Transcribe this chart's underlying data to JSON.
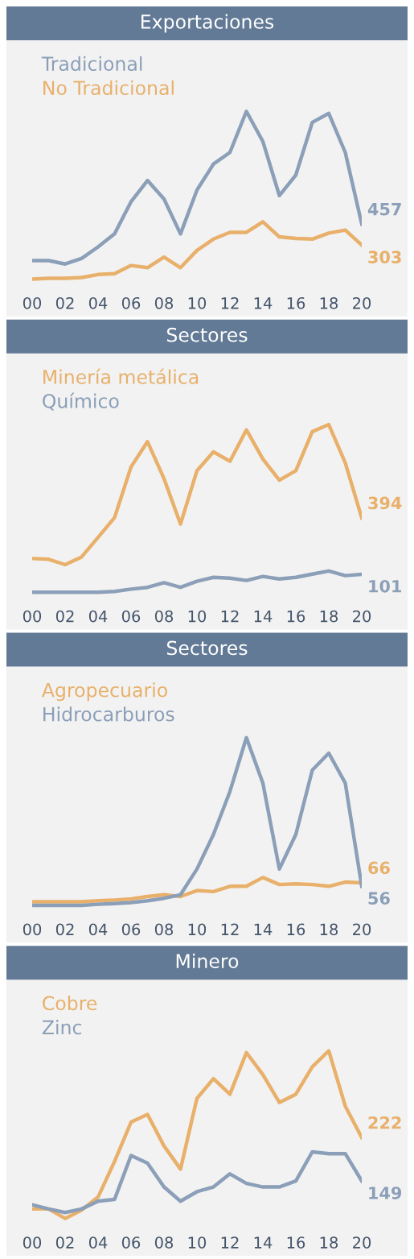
{
  "chart_data": [
    {
      "type": "line",
      "title": "Exportaciones",
      "legend": "top left",
      "tick_labels": "x",
      "grid": false,
      "marker": "none",
      "line_style": "solid",
      "x": [
        2000,
        2001,
        2002,
        2003,
        2004,
        2005,
        2006,
        2007,
        2008,
        2009,
        2010,
        2011,
        2012,
        2013,
        2014,
        2015,
        2016,
        2017,
        2018,
        2019,
        2020
      ],
      "xlim": [
        2000,
        2020
      ],
      "xticks": [
        {
          "value": 2000,
          "label": "00"
        },
        {
          "value": 2002,
          "label": "02"
        },
        {
          "value": 2004,
          "label": "04"
        },
        {
          "value": 2006,
          "label": "06"
        },
        {
          "value": 2008,
          "label": "08"
        },
        {
          "value": 2010,
          "label": "10"
        },
        {
          "value": 2012,
          "label": "12"
        },
        {
          "value": 2014,
          "label": "14"
        },
        {
          "value": 2016,
          "label": "16"
        },
        {
          "value": 2018,
          "label": "18"
        },
        {
          "value": 2020,
          "label": "20"
        }
      ],
      "series": [
        {
          "name": "Tradicional",
          "color": "#8b9fb8",
          "values": [
            190,
            190,
            165,
            205,
            290,
            385,
            620,
            775,
            640,
            385,
            705,
            895,
            980,
            1280,
            1060,
            665,
            815,
            1200,
            1265,
            980,
            457
          ],
          "value_labels": [
            null,
            null,
            null,
            null,
            null,
            null,
            null,
            null,
            null,
            null,
            null,
            null,
            null,
            null,
            null,
            null,
            null,
            null,
            null,
            null,
            "457"
          ]
        },
        {
          "name": "No Tradicional",
          "color": "#e8b06a",
          "values": [
            55,
            60,
            60,
            66,
            88,
            94,
            154,
            138,
            215,
            138,
            264,
            347,
            396,
            396,
            473,
            363,
            352,
            347,
            391,
            413,
            303
          ],
          "value_labels": [
            null,
            null,
            null,
            null,
            null,
            null,
            null,
            null,
            null,
            null,
            null,
            null,
            null,
            null,
            null,
            null,
            null,
            null,
            null,
            null,
            "303"
          ]
        }
      ]
    },
    {
      "type": "line",
      "title": "Sectores",
      "legend": "top left",
      "tick_labels": "x",
      "grid": false,
      "marker": "none",
      "line_style": "solid",
      "x": [
        2000,
        2001,
        2002,
        2003,
        2004,
        2005,
        2006,
        2007,
        2008,
        2009,
        2010,
        2011,
        2012,
        2013,
        2014,
        2015,
        2016,
        2017,
        2018,
        2019,
        2020
      ],
      "xlim": [
        2000,
        2020
      ],
      "xticks": [
        {
          "value": 2000,
          "label": "00"
        },
        {
          "value": 2002,
          "label": "02"
        },
        {
          "value": 2004,
          "label": "04"
        },
        {
          "value": 2006,
          "label": "06"
        },
        {
          "value": 2008,
          "label": "08"
        },
        {
          "value": 2010,
          "label": "10"
        },
        {
          "value": 2012,
          "label": "12"
        },
        {
          "value": 2014,
          "label": "14"
        },
        {
          "value": 2016,
          "label": "16"
        },
        {
          "value": 2018,
          "label": "18"
        },
        {
          "value": 2020,
          "label": "20"
        }
      ],
      "series": [
        {
          "name": "Minería metálica",
          "color": "#e8b06a",
          "values": [
            183,
            179,
            151,
            191,
            293,
            395,
            659,
            790,
            598,
            362,
            639,
            737,
            688,
            851,
            700,
            590,
            639,
            842,
            879,
            680,
            394
          ],
          "value_labels": [
            null,
            null,
            null,
            null,
            null,
            null,
            null,
            null,
            null,
            null,
            null,
            null,
            null,
            null,
            null,
            null,
            null,
            null,
            null,
            null,
            "394"
          ]
        },
        {
          "name": "Químico",
          "color": "#8b9fb8",
          "values": [
            8,
            8,
            8,
            8,
            8,
            12,
            24,
            33,
            57,
            33,
            65,
            85,
            81,
            69,
            90,
            77,
            85,
            102,
            118,
            94,
            101
          ],
          "value_labels": [
            null,
            null,
            null,
            null,
            null,
            null,
            null,
            null,
            null,
            null,
            null,
            null,
            null,
            null,
            null,
            null,
            null,
            null,
            null,
            null,
            "101"
          ]
        }
      ]
    },
    {
      "type": "line",
      "title": "Sectores",
      "legend": "top left",
      "tick_labels": "x",
      "grid": false,
      "marker": "none",
      "line_style": "solid",
      "x": [
        2000,
        2001,
        2002,
        2003,
        2004,
        2005,
        2006,
        2007,
        2008,
        2009,
        2010,
        2011,
        2012,
        2013,
        2014,
        2015,
        2016,
        2017,
        2018,
        2019,
        2020
      ],
      "xlim": [
        2000,
        2020
      ],
      "xticks": [
        {
          "value": 2000,
          "label": "00"
        },
        {
          "value": 2002,
          "label": "02"
        },
        {
          "value": 2004,
          "label": "04"
        },
        {
          "value": 2006,
          "label": "06"
        },
        {
          "value": 2008,
          "label": "08"
        },
        {
          "value": 2010,
          "label": "10"
        },
        {
          "value": 2012,
          "label": "12"
        },
        {
          "value": 2014,
          "label": "14"
        },
        {
          "value": 2016,
          "label": "16"
        },
        {
          "value": 2018,
          "label": "18"
        },
        {
          "value": 2020,
          "label": "20"
        }
      ],
      "series": [
        {
          "name": "Agropecuario",
          "color": "#e8b06a",
          "values": [
            12,
            12,
            12,
            12,
            15,
            17,
            20,
            27,
            32,
            27,
            44,
            41,
            56,
            56,
            81,
            61,
            63,
            61,
            56,
            68,
            66
          ],
          "value_labels": [
            null,
            null,
            null,
            null,
            null,
            null,
            null,
            null,
            null,
            null,
            null,
            null,
            null,
            null,
            null,
            null,
            null,
            null,
            null,
            null,
            "66"
          ]
        },
        {
          "name": "Hidrocarburos",
          "color": "#8b9fb8",
          "values": [
            2,
            2,
            2,
            2,
            5,
            7,
            10,
            15,
            22,
            32,
            105,
            203,
            325,
            478,
            349,
            105,
            203,
            386,
            434,
            349,
            56
          ],
          "value_labels": [
            null,
            null,
            null,
            null,
            null,
            null,
            null,
            null,
            null,
            null,
            null,
            null,
            null,
            null,
            null,
            null,
            null,
            null,
            null,
            null,
            "56"
          ]
        }
      ]
    },
    {
      "type": "line",
      "title": "Minero",
      "legend": "top left",
      "tick_labels": "x",
      "grid": false,
      "marker": "none",
      "line_style": "solid",
      "x": [
        2000,
        2001,
        2002,
        2003,
        2004,
        2005,
        2006,
        2007,
        2008,
        2009,
        2010,
        2011,
        2012,
        2013,
        2014,
        2015,
        2016,
        2017,
        2018,
        2019,
        2020
      ],
      "xlim": [
        2000,
        2020
      ],
      "xticks": [
        {
          "value": 2000,
          "label": "00"
        },
        {
          "value": 2002,
          "label": "02"
        },
        {
          "value": 2004,
          "label": "04"
        },
        {
          "value": 2006,
          "label": "06"
        },
        {
          "value": 2008,
          "label": "08"
        },
        {
          "value": 2010,
          "label": "10"
        },
        {
          "value": 2012,
          "label": "12"
        },
        {
          "value": 2014,
          "label": "14"
        },
        {
          "value": 2016,
          "label": "16"
        },
        {
          "value": 2018,
          "label": "18"
        },
        {
          "value": 2020,
          "label": "20"
        }
      ],
      "series": [
        {
          "name": "Cobre",
          "color": "#e8b06a",
          "values": [
            102,
            102,
            86,
            100,
            122,
            182,
            248,
            261,
            208,
            169,
            288,
            321,
            295,
            365,
            328,
            281,
            295,
            341,
            368,
            275,
            222
          ],
          "value_labels": [
            null,
            null,
            null,
            null,
            null,
            null,
            null,
            null,
            null,
            null,
            null,
            null,
            null,
            null,
            null,
            null,
            null,
            null,
            null,
            null,
            "222"
          ]
        },
        {
          "name": "Zinc",
          "color": "#8b9fb8",
          "values": [
            109,
            102,
            96,
            102,
            115,
            118,
            192,
            179,
            139,
            115,
            131,
            139,
            161,
            145,
            139,
            139,
            149,
            198,
            195,
            195,
            149
          ],
          "value_labels": [
            null,
            null,
            null,
            null,
            null,
            null,
            null,
            null,
            null,
            null,
            null,
            null,
            null,
            null,
            null,
            null,
            null,
            null,
            null,
            null,
            "149"
          ]
        }
      ]
    }
  ]
}
